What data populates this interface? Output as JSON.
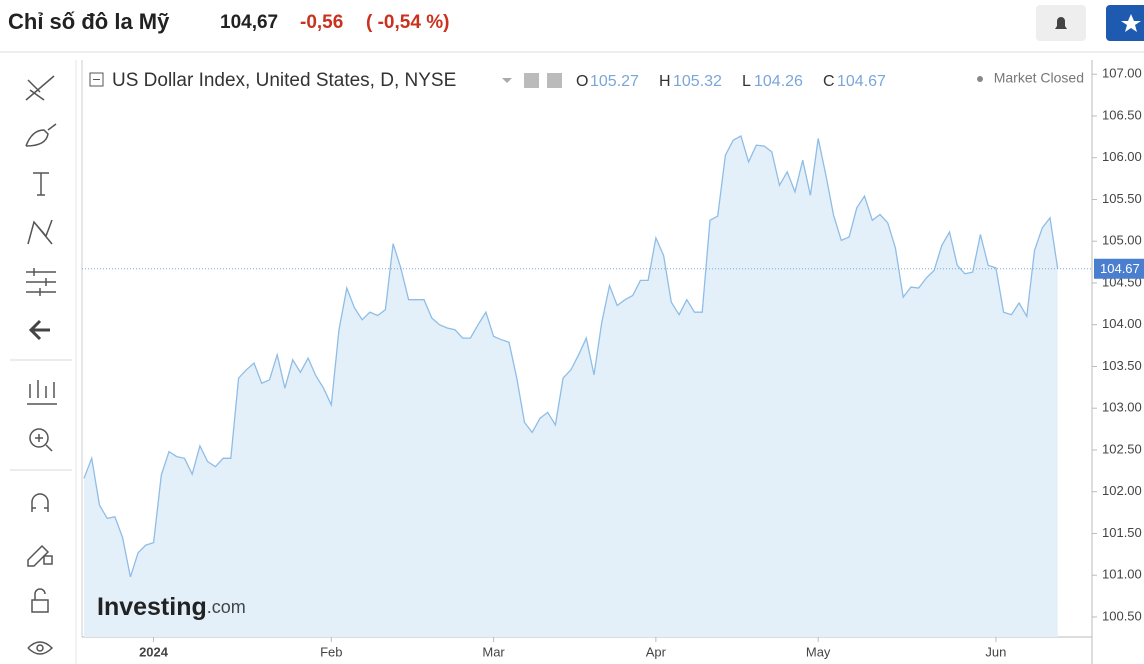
{
  "header": {
    "title": "Chỉ số đô la Mỹ",
    "price": "104,67",
    "change": "-0,56",
    "change_pct": "( -0,54 %)"
  },
  "chart_data": {
    "type": "area",
    "title": "US Dollar Index, United States, D, NYSE",
    "ohlc": {
      "open_label": "O",
      "open": 105.27,
      "high_label": "H",
      "high": 105.32,
      "low_label": "L",
      "low": 104.26,
      "close_label": "C",
      "close": 104.67
    },
    "status": "Market Closed",
    "watermark": [
      "Investing",
      ".com"
    ],
    "color": "#8fbde6",
    "fill": "#e3f0fa",
    "values": [
      102.16,
      102.4,
      101.84,
      101.68,
      101.7,
      101.45,
      100.98,
      101.27,
      101.36,
      101.39,
      102.2,
      102.48,
      102.42,
      102.4,
      102.21,
      102.55,
      102.36,
      102.3,
      102.4,
      102.4,
      103.36,
      103.46,
      103.54,
      103.3,
      103.34,
      103.64,
      103.24,
      103.58,
      103.43,
      103.6,
      103.39,
      103.24,
      103.04,
      103.94,
      104.44,
      104.2,
      104.06,
      104.15,
      104.11,
      104.18,
      104.97,
      104.68,
      104.3,
      104.3,
      104.3,
      104.08,
      104.0,
      103.96,
      103.94,
      103.84,
      103.84,
      104.0,
      104.15,
      103.86,
      103.82,
      103.79,
      103.36,
      102.83,
      102.71,
      102.88,
      102.95,
      102.8,
      103.36,
      103.46,
      103.64,
      103.84,
      103.4,
      104.03,
      104.47,
      104.23,
      104.3,
      104.35,
      104.53,
      104.53,
      105.04,
      104.83,
      104.27,
      104.12,
      104.3,
      104.15,
      104.15,
      105.25,
      105.3,
      106.03,
      106.21,
      106.26,
      105.95,
      106.15,
      106.14,
      106.07,
      105.67,
      105.83,
      105.59,
      105.97,
      105.55,
      106.23,
      105.79,
      105.31,
      105.01,
      105.05,
      105.4,
      105.54,
      105.25,
      105.32,
      105.22,
      104.92,
      104.33,
      104.45,
      104.44,
      104.56,
      104.65,
      104.95,
      105.11,
      104.71,
      104.61,
      104.63,
      105.08,
      104.71,
      104.68,
      104.15,
      104.12,
      104.26,
      104.1,
      104.89,
      105.16,
      105.28,
      104.67
    ],
    "xlim": [
      0,
      125
    ],
    "xticks": [
      {
        "value": 9,
        "label": "2024"
      },
      {
        "value": 32,
        "label": "Feb"
      },
      {
        "value": 53,
        "label": "Mar"
      },
      {
        "value": 74,
        "label": "Apr"
      },
      {
        "value": 95,
        "label": "May"
      },
      {
        "value": 118,
        "label": "Jun"
      }
    ],
    "ylim": [
      100.26,
      107.17
    ],
    "yticks": [
      {
        "value": 100.5,
        "label": "100.50"
      },
      {
        "value": 101,
        "label": "101.00"
      },
      {
        "value": 101.5,
        "label": "101.50"
      },
      {
        "value": 102,
        "label": "102.00"
      },
      {
        "value": 102.5,
        "label": "102.50"
      },
      {
        "value": 103,
        "label": "103.00"
      },
      {
        "value": 103.5,
        "label": "103.50"
      },
      {
        "value": 104,
        "label": "104.00"
      },
      {
        "value": 104.5,
        "label": "104.50"
      },
      {
        "value": 105,
        "label": "105.00"
      },
      {
        "value": 105.5,
        "label": "105.50"
      },
      {
        "value": 106,
        "label": "106.00"
      },
      {
        "value": 106.5,
        "label": "106.50"
      },
      {
        "value": 107,
        "label": "107.00"
      }
    ]
  }
}
